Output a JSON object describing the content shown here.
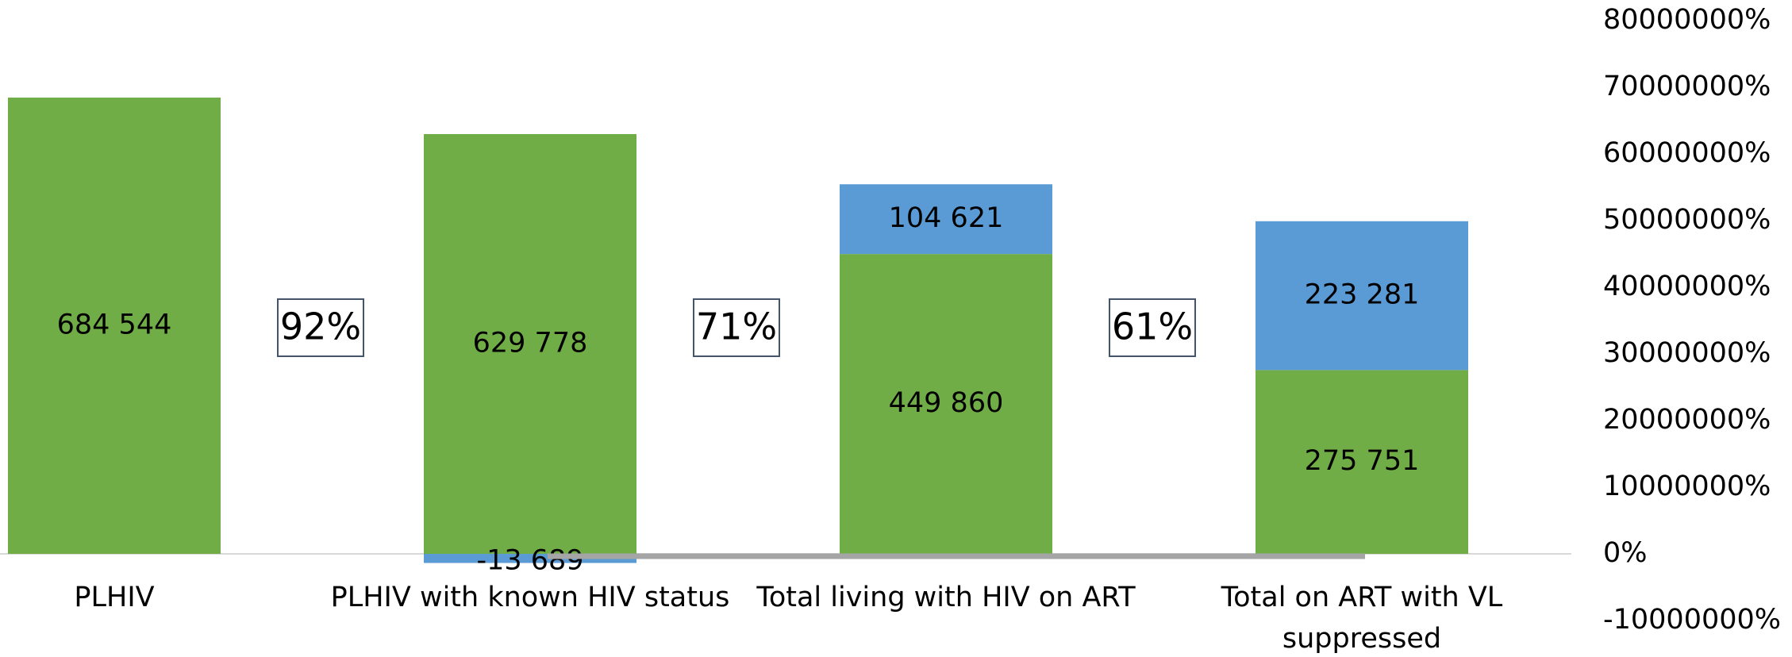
{
  "chart_data": {
    "type": "stacked_bar",
    "categories": [
      "PLHIV",
      "PLHIV with known HIV status",
      "Total living with HIV on ART",
      "Total on ART with VL suppressed"
    ],
    "series": [
      {
        "color": "#70ad47",
        "values": [
          684544,
          629778,
          449860,
          275751
        ],
        "value_labels": [
          "684 544",
          "629 778",
          "449 860",
          "275 751"
        ]
      },
      {
        "color": "#5b9bd5",
        "values": [
          null,
          -13689,
          104621,
          223281
        ],
        "value_labels": [
          null,
          "-13 689",
          "104 621",
          "223 281"
        ]
      }
    ],
    "annotations": [
      "92%",
      "71%",
      "61%"
    ],
    "ylim": [
      -100000,
      800000
    ],
    "yticks": [
      {
        "value": -100000,
        "label": "-10000000%"
      },
      {
        "value": 0,
        "label": "0%"
      },
      {
        "value": 100000,
        "label": "10000000%"
      },
      {
        "value": 200000,
        "label": "20000000%"
      },
      {
        "value": 300000,
        "label": "30000000%"
      },
      {
        "value": 400000,
        "label": "40000000%"
      },
      {
        "value": 500000,
        "label": "50000000%"
      },
      {
        "value": 600000,
        "label": "60000000%"
      },
      {
        "value": 700000,
        "label": "70000000%"
      },
      {
        "value": 800000,
        "label": "80000000%"
      }
    ]
  }
}
